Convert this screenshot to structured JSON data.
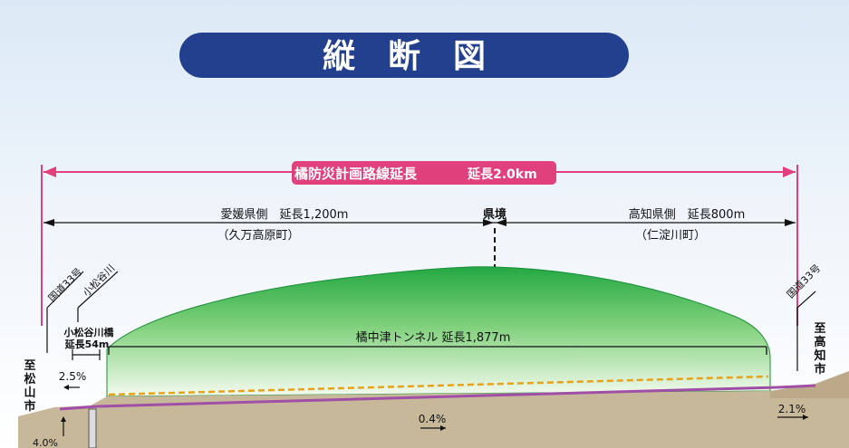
{
  "title": "縦　断　図",
  "route": {
    "label": "橘防災計画路線延長",
    "length": "延長2.0km"
  },
  "ehime": {
    "label": "愛媛県側　延長1,200m",
    "town": "（久万高原町）"
  },
  "kochi": {
    "label": "高知県側　延長800m",
    "town": "（仁淀川町）"
  },
  "prefecture_border": "県境",
  "tunnel": {
    "label": "橘中津トンネル 延長1,877m"
  },
  "bridge": {
    "name": "小松谷川橋",
    "length": "延長54m"
  },
  "river": "小松谷川",
  "route_left": "国道33号",
  "route_right": "国道33号",
  "dest_left": "至松山市",
  "dest_right": "至高知市",
  "grades": {
    "left_a": "2.5%",
    "left_b": "4.0%",
    "middle": "0.4%",
    "right": "2.1%"
  },
  "colors": {
    "title_bg": "#23408e",
    "magenta": "#e0407c",
    "green_top": "#2bb34a",
    "orange": "#e8a21a",
    "purple": "#a04fa6"
  }
}
